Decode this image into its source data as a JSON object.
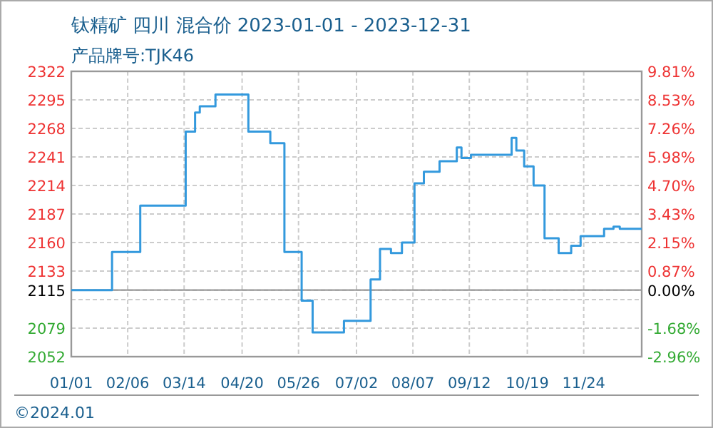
{
  "chart_data": {
    "type": "step",
    "title": "钛精矿 四川 混合价 2023-01-01 - 2023-12-31",
    "subtitle": "产品牌号:TJK46",
    "x": [
      "2023-01-01",
      "2023-01-27",
      "2023-02-14",
      "2023-03-15",
      "2023-03-21",
      "2023-03-24",
      "2023-04-03",
      "2023-04-24",
      "2023-05-08",
      "2023-05-17",
      "2023-05-28",
      "2023-06-04",
      "2023-06-24",
      "2023-07-11",
      "2023-07-17",
      "2023-07-24",
      "2023-07-31",
      "2023-08-08",
      "2023-08-14",
      "2023-08-24",
      "2023-09-04",
      "2023-09-07",
      "2023-09-13",
      "2023-10-09",
      "2023-10-12",
      "2023-10-17",
      "2023-10-23",
      "2023-10-30",
      "2023-11-08",
      "2023-11-16",
      "2023-11-22",
      "2023-12-07",
      "2023-12-13",
      "2023-12-17",
      "2023-12-31"
    ],
    "series": [
      {
        "color": "#3399dd",
        "values": [
          2115,
          2151,
          2195,
          2265,
          2283,
          2289,
          2300,
          2265,
          2254,
          2151,
          2105,
          2075,
          2086,
          2125,
          2154,
          2150,
          2160,
          2216,
          2227,
          2237,
          2250,
          2240,
          2243,
          2259,
          2247,
          2232,
          2214,
          2164,
          2150,
          2157,
          2166,
          2173,
          2175,
          2173,
          2173
        ]
      }
    ],
    "xlim": [
      "2023-01-01",
      "2023-12-31"
    ],
    "xticks": [
      {
        "value": "2023-01-01",
        "label": "01/01"
      },
      {
        "value": "2023-02-06",
        "label": "02/06"
      },
      {
        "value": "2023-03-14",
        "label": "03/14"
      },
      {
        "value": "2023-04-20",
        "label": "04/20"
      },
      {
        "value": "2023-05-26",
        "label": "05/26"
      },
      {
        "value": "2023-07-02",
        "label": "07/02"
      },
      {
        "value": "2023-08-07",
        "label": "08/07"
      },
      {
        "value": "2023-09-12",
        "label": "09/12"
      },
      {
        "value": "2023-10-19",
        "label": "10/19"
      },
      {
        "value": "2023-11-24",
        "label": "11/24"
      }
    ],
    "ylim": [
      2052,
      2322
    ],
    "yticks": [
      2322,
      2295,
      2268,
      2241,
      2214,
      2187,
      2160,
      2133,
      2115,
      {
        "value": 2106,
        "label": null
      },
      2079,
      2052
    ],
    "y2lim": [
      -2.96,
      9.81
    ],
    "y2ticks": [
      {
        "value": 9.81,
        "label": "9.81%"
      },
      {
        "value": 8.53,
        "label": "8.53%"
      },
      {
        "value": 7.26,
        "label": "7.26%"
      },
      {
        "value": 5.98,
        "label": "5.98%"
      },
      {
        "value": 4.7,
        "label": "4.70%"
      },
      {
        "value": 3.43,
        "label": "3.43%"
      },
      {
        "value": 2.15,
        "label": "2.15%"
      },
      {
        "value": 0.87,
        "label": "0.87%"
      },
      {
        "value": 0,
        "label": "0.00%"
      },
      {
        "value": -1.68,
        "label": "-1.68%"
      },
      {
        "value": -2.96,
        "label": "-2.96%"
      }
    ],
    "ref_lines": [
      {
        "axis": "y",
        "value": 2115,
        "color": "#999999"
      }
    ],
    "grid": true,
    "annotations": [
      "©2024.01"
    ]
  }
}
